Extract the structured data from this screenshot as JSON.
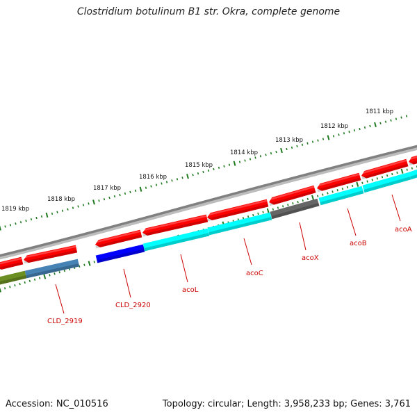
{
  "title": "Clostridium botulinum B1 str. Okra, complete genome",
  "footer": {
    "accession": "Accession: NC_010516",
    "summary": "Topology: circular; Length: 3,958,233 bp; Genes: 3,761"
  },
  "scale": {
    "ticks": [
      {
        "label": "1819 kbp"
      },
      {
        "label": "1818 kbp"
      },
      {
        "label": "1817 kbp"
      },
      {
        "label": "1816 kbp"
      },
      {
        "label": "1815 kbp"
      },
      {
        "label": "1814 kbp"
      },
      {
        "label": "1813 kbp"
      },
      {
        "label": "1812 kbp"
      },
      {
        "label": "1811 kbp"
      }
    ]
  },
  "genes": [
    {
      "name": "CLD_2919",
      "color": "#4682b4"
    },
    {
      "name": "CLD_2920",
      "color": "#0000ff"
    },
    {
      "name": "acoL",
      "color": "#00ffff"
    },
    {
      "name": "acoC",
      "color": "#00ffff"
    },
    {
      "name": "acoX",
      "color": "#666666"
    },
    {
      "name": "acoB",
      "color": "#00ffff"
    },
    {
      "name": "acoA",
      "color": "#00ffff"
    }
  ],
  "colors": {
    "backbone": "#808080",
    "cds": "#ff0000",
    "tick": "#1f7a1f",
    "gene_label": "#cc0000",
    "unnamed_feature": "#6b8e23"
  }
}
